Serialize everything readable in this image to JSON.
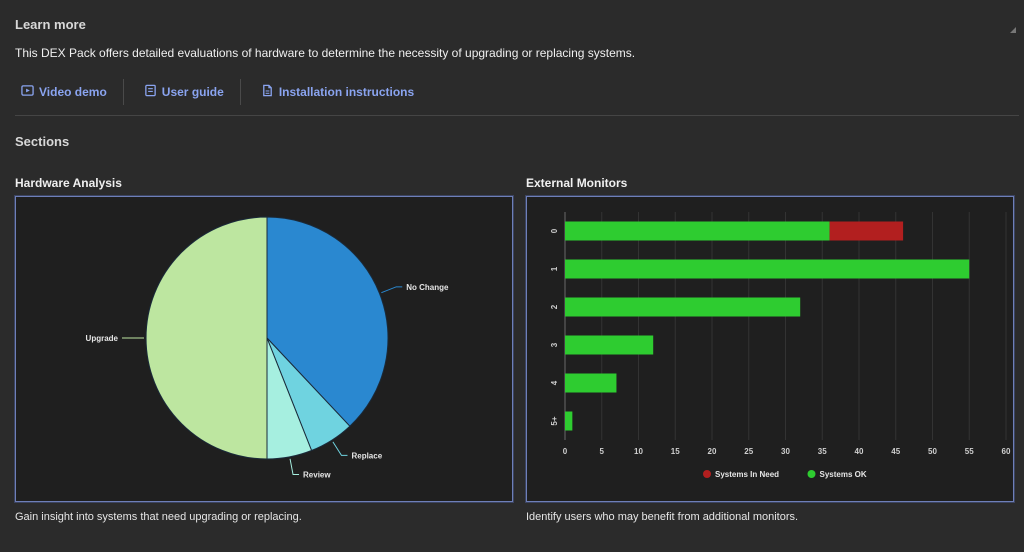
{
  "learn_more": {
    "title": "Learn more",
    "description": "This DEX Pack offers detailed evaluations of hardware to determine the necessity of upgrading or replacing systems.",
    "links": [
      {
        "label": "Video demo",
        "icon": "video-icon"
      },
      {
        "label": "User guide",
        "icon": "book-icon"
      },
      {
        "label": "Installation instructions",
        "icon": "document-icon"
      }
    ]
  },
  "sections": {
    "title": "Sections",
    "cards": [
      {
        "title": "Hardware Analysis",
        "description": "Gain insight into systems that need upgrading or replacing."
      },
      {
        "title": "External Monitors",
        "description": "Identify users who may benefit from additional monitors."
      }
    ]
  },
  "colors": {
    "link": "#8aa4f0",
    "panel_border": "#6e7fb8",
    "no_change": "#2a88d0",
    "replace": "#6fd3e0",
    "review": "#a6efe0",
    "upgrade": "#bde6a0",
    "systems_in_need": "#b21f1f",
    "systems_ok": "#2ecc30"
  },
  "chart_data": [
    {
      "type": "pie",
      "slices": [
        {
          "label": "No Change",
          "value": 38
        },
        {
          "label": "Replace",
          "value": 6
        },
        {
          "label": "Review",
          "value": 6
        },
        {
          "label": "Upgrade",
          "value": 50
        }
      ]
    },
    {
      "type": "bar",
      "orientation": "horizontal",
      "stacked": true,
      "categories": [
        "0",
        "1",
        "2",
        "3",
        "4",
        "5+"
      ],
      "series": [
        {
          "name": "Systems OK",
          "values": [
            36,
            55,
            32,
            12,
            7,
            1
          ]
        },
        {
          "name": "Systems In Need",
          "values": [
            10,
            0,
            0,
            0,
            0,
            0
          ]
        }
      ],
      "xlim": [
        0,
        60
      ],
      "xticks": [
        0,
        5,
        10,
        15,
        20,
        25,
        30,
        35,
        40,
        45,
        50,
        55,
        60
      ],
      "grid": true,
      "legend": "bottom"
    }
  ]
}
